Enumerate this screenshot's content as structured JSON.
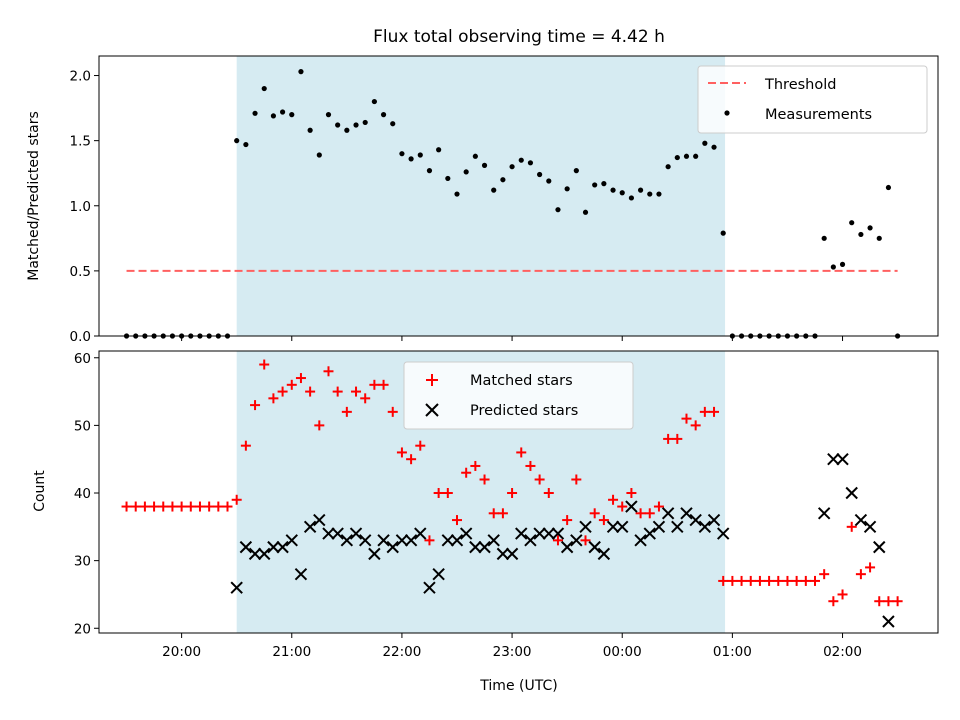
{
  "title": "Flux total observing time = 4.42 h",
  "chart_data": [
    {
      "type": "scatter",
      "panel": "top",
      "ylabel": "Matched/Predicted stars",
      "ylim": [
        0,
        2.15
      ],
      "yticks": [
        "0.0",
        "0.5",
        "1.0",
        "1.5",
        "2.0"
      ],
      "xlim": [
        "19:15",
        "02:52"
      ],
      "xticks": [
        "20:00",
        "21:00",
        "22:00",
        "23:00",
        "00:00",
        "01:00",
        "02:00"
      ],
      "shaded_span": [
        "20:30",
        "00:56"
      ],
      "legend": {
        "placement": "top-right",
        "entries": [
          "Threshold",
          "Measurements"
        ]
      },
      "threshold": {
        "name": "Threshold",
        "value": 0.5,
        "x": [
          "19:30",
          "02:30"
        ],
        "color": "#ff6060"
      },
      "measurements": {
        "name": "Measurements",
        "color": "#000000",
        "points": [
          [
            "19:30",
            0
          ],
          [
            "19:35",
            0
          ],
          [
            "19:40",
            0
          ],
          [
            "19:45",
            0
          ],
          [
            "19:50",
            0
          ],
          [
            "19:55",
            0
          ],
          [
            "20:00",
            0
          ],
          [
            "20:05",
            0
          ],
          [
            "20:10",
            0
          ],
          [
            "20:15",
            0
          ],
          [
            "20:20",
            0
          ],
          [
            "20:25",
            0
          ],
          [
            "20:30",
            1.5
          ],
          [
            "20:35",
            1.47
          ],
          [
            "20:40",
            1.71
          ],
          [
            "20:45",
            1.9
          ],
          [
            "20:50",
            1.69
          ],
          [
            "20:55",
            1.72
          ],
          [
            "21:00",
            1.7
          ],
          [
            "21:05",
            2.03
          ],
          [
            "21:10",
            1.58
          ],
          [
            "21:15",
            1.39
          ],
          [
            "21:20",
            1.7
          ],
          [
            "21:25",
            1.62
          ],
          [
            "21:30",
            1.58
          ],
          [
            "21:35",
            1.62
          ],
          [
            "21:40",
            1.64
          ],
          [
            "21:45",
            1.8
          ],
          [
            "21:50",
            1.7
          ],
          [
            "21:55",
            1.63
          ],
          [
            "22:00",
            1.4
          ],
          [
            "22:05",
            1.36
          ],
          [
            "22:10",
            1.39
          ],
          [
            "22:15",
            1.27
          ],
          [
            "22:20",
            1.43
          ],
          [
            "22:25",
            1.21
          ],
          [
            "22:30",
            1.09
          ],
          [
            "22:35",
            1.26
          ],
          [
            "22:40",
            1.38
          ],
          [
            "22:45",
            1.31
          ],
          [
            "22:50",
            1.12
          ],
          [
            "22:55",
            1.2
          ],
          [
            "23:00",
            1.3
          ],
          [
            "23:05",
            1.35
          ],
          [
            "23:10",
            1.33
          ],
          [
            "23:15",
            1.24
          ],
          [
            "23:20",
            1.19
          ],
          [
            "23:25",
            0.97
          ],
          [
            "23:30",
            1.13
          ],
          [
            "23:35",
            1.27
          ],
          [
            "23:40",
            0.95
          ],
          [
            "23:45",
            1.16
          ],
          [
            "23:50",
            1.17
          ],
          [
            "23:55",
            1.12
          ],
          [
            "00:00",
            1.1
          ],
          [
            "00:05",
            1.06
          ],
          [
            "00:10",
            1.12
          ],
          [
            "00:15",
            1.09
          ],
          [
            "00:20",
            1.09
          ],
          [
            "00:25",
            1.3
          ],
          [
            "00:30",
            1.37
          ],
          [
            "00:35",
            1.38
          ],
          [
            "00:40",
            1.38
          ],
          [
            "00:45",
            1.48
          ],
          [
            "00:50",
            1.45
          ],
          [
            "00:55",
            0.79
          ],
          [
            "01:00",
            0
          ],
          [
            "01:05",
            0
          ],
          [
            "01:10",
            0
          ],
          [
            "01:15",
            0
          ],
          [
            "01:20",
            0
          ],
          [
            "01:25",
            0
          ],
          [
            "01:30",
            0
          ],
          [
            "01:35",
            0
          ],
          [
            "01:40",
            0
          ],
          [
            "01:45",
            0
          ],
          [
            "01:50",
            0.75
          ],
          [
            "01:55",
            0.53
          ],
          [
            "02:00",
            0.55
          ],
          [
            "02:05",
            0.87
          ],
          [
            "02:10",
            0.78
          ],
          [
            "02:15",
            0.83
          ],
          [
            "02:20",
            0.75
          ],
          [
            "02:25",
            1.14
          ],
          [
            "02:30",
            0
          ]
        ]
      }
    },
    {
      "type": "scatter",
      "panel": "bottom",
      "xlabel": "Time (UTC)",
      "ylabel": "Count",
      "ylim": [
        19.3,
        61
      ],
      "yticks": [
        "20",
        "30",
        "40",
        "50",
        "60"
      ],
      "xlim": [
        "19:15",
        "02:52"
      ],
      "xticks": [
        "20:00",
        "21:00",
        "22:00",
        "23:00",
        "00:00",
        "01:00",
        "02:00"
      ],
      "shaded_span": [
        "20:30",
        "00:56"
      ],
      "legend": {
        "placement": "upper center",
        "entries": [
          "Matched stars",
          "Predicted stars"
        ]
      },
      "series": [
        {
          "name": "Matched stars",
          "marker": "plus",
          "color": "#ff0000",
          "points": [
            [
              "19:30",
              38
            ],
            [
              "19:35",
              38
            ],
            [
              "19:40",
              38
            ],
            [
              "19:45",
              38
            ],
            [
              "19:50",
              38
            ],
            [
              "19:55",
              38
            ],
            [
              "20:00",
              38
            ],
            [
              "20:05",
              38
            ],
            [
              "20:10",
              38
            ],
            [
              "20:15",
              38
            ],
            [
              "20:20",
              38
            ],
            [
              "20:25",
              38
            ],
            [
              "20:30",
              39
            ],
            [
              "20:35",
              47
            ],
            [
              "20:40",
              53
            ],
            [
              "20:45",
              59
            ],
            [
              "20:50",
              54
            ],
            [
              "20:55",
              55
            ],
            [
              "21:00",
              56
            ],
            [
              "21:05",
              57
            ],
            [
              "21:10",
              55
            ],
            [
              "21:15",
              50
            ],
            [
              "21:20",
              58
            ],
            [
              "21:25",
              55
            ],
            [
              "21:30",
              52
            ],
            [
              "21:35",
              55
            ],
            [
              "21:40",
              54
            ],
            [
              "21:45",
              56
            ],
            [
              "21:50",
              56
            ],
            [
              "21:55",
              52
            ],
            [
              "22:00",
              46
            ],
            [
              "22:05",
              45
            ],
            [
              "22:10",
              47
            ],
            [
              "22:15",
              33
            ],
            [
              "22:20",
              40
            ],
            [
              "22:25",
              40
            ],
            [
              "22:30",
              36
            ],
            [
              "22:35",
              43
            ],
            [
              "22:40",
              44
            ],
            [
              "22:45",
              42
            ],
            [
              "22:50",
              37
            ],
            [
              "22:55",
              37
            ],
            [
              "23:00",
              40
            ],
            [
              "23:05",
              46
            ],
            [
              "23:10",
              44
            ],
            [
              "23:15",
              42
            ],
            [
              "23:20",
              40
            ],
            [
              "23:25",
              33
            ],
            [
              "23:30",
              36
            ],
            [
              "23:35",
              42
            ],
            [
              "23:40",
              33
            ],
            [
              "23:45",
              37
            ],
            [
              "23:50",
              36
            ],
            [
              "23:55",
              39
            ],
            [
              "00:00",
              38
            ],
            [
              "00:05",
              40
            ],
            [
              "00:10",
              37
            ],
            [
              "00:15",
              37
            ],
            [
              "00:20",
              38
            ],
            [
              "00:25",
              48
            ],
            [
              "00:30",
              48
            ],
            [
              "00:35",
              51
            ],
            [
              "00:40",
              50
            ],
            [
              "00:45",
              52
            ],
            [
              "00:50",
              52
            ],
            [
              "00:55",
              27
            ],
            [
              "01:00",
              27
            ],
            [
              "01:05",
              27
            ],
            [
              "01:10",
              27
            ],
            [
              "01:15",
              27
            ],
            [
              "01:20",
              27
            ],
            [
              "01:25",
              27
            ],
            [
              "01:30",
              27
            ],
            [
              "01:35",
              27
            ],
            [
              "01:40",
              27
            ],
            [
              "01:45",
              27
            ],
            [
              "01:50",
              28
            ],
            [
              "01:55",
              24
            ],
            [
              "02:00",
              25
            ],
            [
              "02:05",
              35
            ],
            [
              "02:10",
              28
            ],
            [
              "02:15",
              29
            ],
            [
              "02:20",
              24
            ],
            [
              "02:25",
              24
            ],
            [
              "02:30",
              24
            ]
          ]
        },
        {
          "name": "Predicted stars",
          "marker": "x",
          "color": "#000000",
          "points": [
            [
              "20:30",
              26
            ],
            [
              "20:35",
              32
            ],
            [
              "20:40",
              31
            ],
            [
              "20:45",
              31
            ],
            [
              "20:50",
              32
            ],
            [
              "20:55",
              32
            ],
            [
              "21:00",
              33
            ],
            [
              "21:05",
              28
            ],
            [
              "21:10",
              35
            ],
            [
              "21:15",
              36
            ],
            [
              "21:20",
              34
            ],
            [
              "21:25",
              34
            ],
            [
              "21:30",
              33
            ],
            [
              "21:35",
              34
            ],
            [
              "21:40",
              33
            ],
            [
              "21:45",
              31
            ],
            [
              "21:50",
              33
            ],
            [
              "21:55",
              32
            ],
            [
              "22:00",
              33
            ],
            [
              "22:05",
              33
            ],
            [
              "22:10",
              34
            ],
            [
              "22:15",
              26
            ],
            [
              "22:20",
              28
            ],
            [
              "22:25",
              33
            ],
            [
              "22:30",
              33
            ],
            [
              "22:35",
              34
            ],
            [
              "22:40",
              32
            ],
            [
              "22:45",
              32
            ],
            [
              "22:50",
              33
            ],
            [
              "22:55",
              31
            ],
            [
              "23:00",
              31
            ],
            [
              "23:05",
              34
            ],
            [
              "23:10",
              33
            ],
            [
              "23:15",
              34
            ],
            [
              "23:20",
              34
            ],
            [
              "23:25",
              34
            ],
            [
              "23:30",
              32
            ],
            [
              "23:35",
              33
            ],
            [
              "23:40",
              35
            ],
            [
              "23:45",
              32
            ],
            [
              "23:50",
              31
            ],
            [
              "23:55",
              35
            ],
            [
              "00:00",
              35
            ],
            [
              "00:05",
              38
            ],
            [
              "00:10",
              33
            ],
            [
              "00:15",
              34
            ],
            [
              "00:20",
              35
            ],
            [
              "00:25",
              37
            ],
            [
              "00:30",
              35
            ],
            [
              "00:35",
              37
            ],
            [
              "00:40",
              36
            ],
            [
              "00:45",
              35
            ],
            [
              "00:50",
              36
            ],
            [
              "00:55",
              34
            ],
            [
              "01:50",
              37
            ],
            [
              "01:55",
              45
            ],
            [
              "02:00",
              45
            ],
            [
              "02:05",
              40
            ],
            [
              "02:10",
              36
            ],
            [
              "02:15",
              35
            ],
            [
              "02:20",
              32
            ],
            [
              "02:25",
              21
            ]
          ]
        }
      ]
    }
  ]
}
